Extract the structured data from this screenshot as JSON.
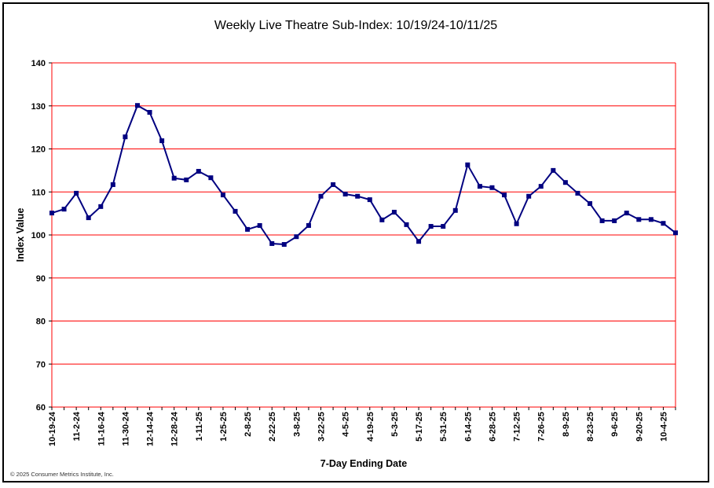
{
  "chart_data": {
    "type": "line",
    "title": "Weekly Live Theatre Sub-Index: 10/19/24-10/11/25",
    "xlabel": "7-Day Ending Date",
    "ylabel": "Index Value",
    "ylim": [
      60,
      140
    ],
    "yticks": [
      60,
      70,
      80,
      90,
      100,
      110,
      120,
      130,
      140
    ],
    "grid": true,
    "x_tick_labels": [
      "10-19-24",
      "11-2-24",
      "11-16-24",
      "11-30-24",
      "12-14-24",
      "12-28-24",
      "1-11-25",
      "1-25-25",
      "2-8-25",
      "2-22-25",
      "3-8-25",
      "3-22-25",
      "4-5-25",
      "4-19-25",
      "5-3-25",
      "5-17-25",
      "5-31-25",
      "6-14-25",
      "6-28-25",
      "7-12-25",
      "7-26-25",
      "8-9-25",
      "8-23-25",
      "9-6-25",
      "9-20-25",
      "10-4-25"
    ],
    "series": [
      {
        "name": "Live Theatre Sub-Index",
        "color": "#000080",
        "values": [
          105.1,
          106.0,
          109.7,
          104.0,
          106.6,
          111.7,
          122.8,
          130.1,
          128.5,
          121.9,
          113.2,
          112.8,
          114.8,
          113.3,
          109.3,
          105.5,
          101.3,
          102.2,
          98.0,
          97.8,
          99.6,
          102.2,
          109.0,
          111.7,
          109.5,
          109.0,
          108.2,
          103.5,
          105.3,
          102.4,
          98.5,
          102.0,
          102.0,
          105.7,
          116.3,
          111.3,
          111.0,
          109.3,
          102.6,
          109.0,
          111.3,
          115.0,
          112.2,
          109.7,
          107.3,
          103.3,
          103.3,
          105.1,
          103.6,
          103.6,
          102.7,
          100.5
        ]
      }
    ],
    "gridline_color": "#ff0000"
  },
  "copyright": "© 2025 Consumer Metrics Institute, Inc."
}
